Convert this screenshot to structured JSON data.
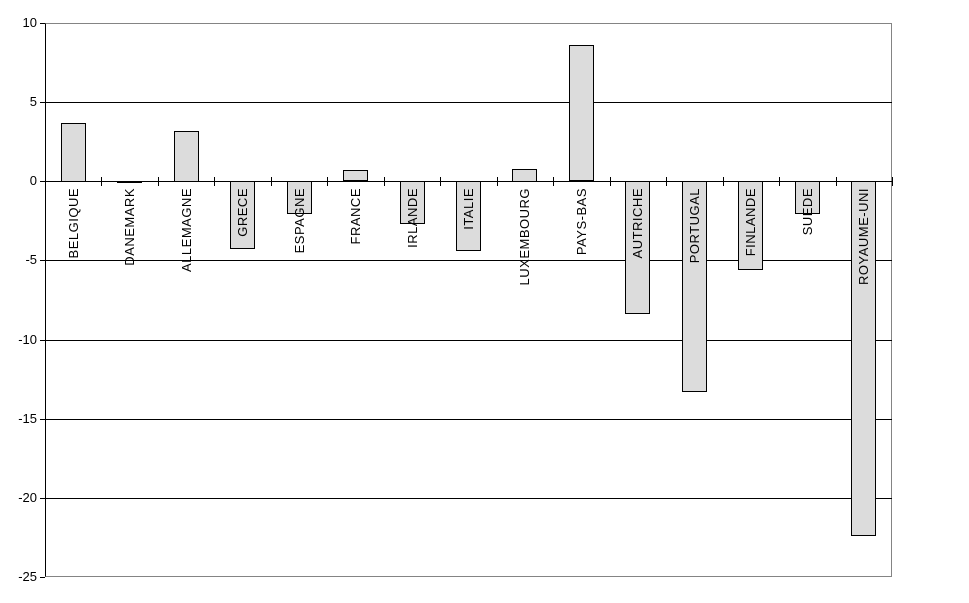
{
  "chart_data": {
    "type": "bar",
    "title": "",
    "xlabel": "",
    "ylabel": "",
    "categories": [
      "BELGIQUE",
      "DANEMARK",
      "ALLEMAGNE",
      "GRECE",
      "ESPAGNE",
      "FRANCE",
      "IRLANDE",
      "ITALIE",
      "LUXEMBOURG",
      "PAYS-BAS",
      "AUTRICHE",
      "PORTUGAL",
      "FINLANDE",
      "SUEDE",
      "ROYAUME-UNI"
    ],
    "values": [
      3.7,
      -0.1,
      3.2,
      -4.3,
      -2.1,
      0.7,
      -2.7,
      -4.4,
      0.8,
      8.6,
      -8.4,
      -13.3,
      -5.6,
      -2.1,
      -22.4
    ],
    "ylim": [
      -25,
      10
    ],
    "yticks": [
      10,
      5,
      0,
      -5,
      -10,
      -15,
      -20,
      -25
    ],
    "ytick_labels": [
      "10",
      "5",
      "0",
      "-5",
      "-10",
      "-15",
      "-20",
      "-25"
    ],
    "grid": true,
    "legend": false,
    "colors": {
      "bar_fill": "#dcdcdc",
      "bar_border": "#000000",
      "gridline": "#000000",
      "axis": "#000000",
      "frame": "#848484",
      "background": "#ffffff",
      "text": "#000000"
    }
  }
}
